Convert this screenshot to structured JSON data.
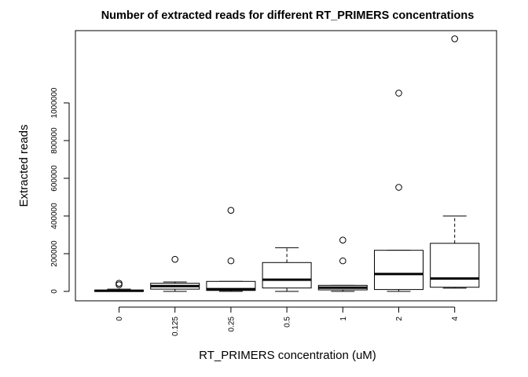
{
  "chart_data": {
    "type": "boxplot",
    "title": "Number of extracted reads for different RT_PRIMERS concentrations",
    "xlabel": "RT_PRIMERS concentration (uM)",
    "ylabel": "Extracted reads",
    "ylim": [
      -50000,
      1380000
    ],
    "y_ticks": [
      0,
      200000,
      400000,
      600000,
      800000,
      1000000
    ],
    "y_tick_labels": [
      "0",
      "200000",
      "400000",
      "600000",
      "800000",
      "1000000"
    ],
    "categories": [
      "0",
      "0.125",
      "0.25",
      "0.5",
      "1",
      "2",
      "4"
    ],
    "boxes": [
      {
        "whisker_low": 0,
        "q1": 0,
        "median": 3000,
        "q3": 7000,
        "whisker_high": 12000,
        "outliers": [
          35000,
          43000
        ]
      },
      {
        "whisker_low": 0,
        "q1": 12000,
        "median": 28000,
        "q3": 43000,
        "whisker_high": 50000,
        "outliers": [
          170000
        ]
      },
      {
        "whisker_low": 0,
        "q1": 5000,
        "median": 12000,
        "q3": 53000,
        "whisker_high": 53000,
        "outliers": [
          162000,
          430000
        ]
      },
      {
        "whisker_low": 0,
        "q1": 18000,
        "median": 62000,
        "q3": 153000,
        "whisker_high": 232000,
        "outliers": []
      },
      {
        "whisker_low": 0,
        "q1": 8000,
        "median": 20000,
        "q3": 32000,
        "whisker_high": 32000,
        "outliers": [
          162000,
          272000
        ]
      },
      {
        "whisker_low": 0,
        "q1": 10000,
        "median": 92000,
        "q3": 218000,
        "whisker_high": 218000,
        "outliers": [
          552000,
          1052000
        ]
      },
      {
        "whisker_low": 17000,
        "q1": 22000,
        "median": 68000,
        "q3": 255000,
        "whisker_high": 400000,
        "outliers": [
          1340000
        ]
      }
    ]
  }
}
